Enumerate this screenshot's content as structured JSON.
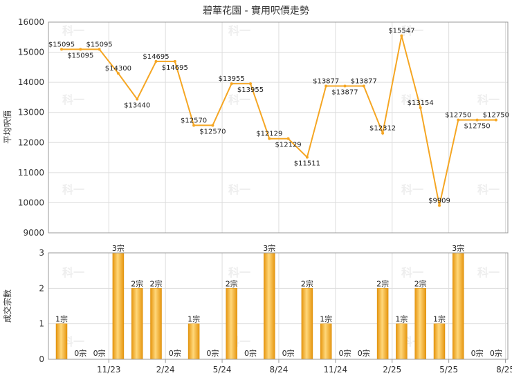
{
  "chart_data": [
    {
      "type": "line",
      "title": "碧華花園 - 實用呎價走勢",
      "ylabel": "平均呎價",
      "ylim": [
        9000,
        16000
      ],
      "yticks": [
        9000,
        10000,
        11000,
        12000,
        13000,
        14000,
        15000,
        16000
      ],
      "color": "#f5a623",
      "series": [
        {
          "values": [
            15095,
            15095,
            15095,
            14300,
            13440,
            14695,
            14695,
            12570,
            12570,
            13955,
            13955,
            12129,
            12129,
            11511,
            13877,
            13877,
            13877,
            12312,
            15547,
            13154,
            9909,
            12750,
            12750,
            12750
          ],
          "labels": [
            "$15095",
            "$15095",
            "$15095",
            "$14300",
            "$13440",
            "$14695",
            "$14695",
            "$12570",
            "$12570",
            "$13955",
            "$13955",
            "$12129",
            "$12129",
            "$11511",
            "$13877",
            "$13877",
            "$13877",
            "$12312",
            "$15547",
            "$13154",
            "$9909",
            "$12750",
            "$12750",
            "$12750"
          ]
        }
      ],
      "grid": true
    },
    {
      "type": "bar",
      "ylabel": "成交宗數",
      "ylim": [
        0,
        3
      ],
      "yticks": [
        0,
        1,
        2,
        3
      ],
      "color": "#f5a623",
      "x_tick_labels": [
        "11/23",
        "2/24",
        "5/24",
        "8/24",
        "11/24",
        "2/25",
        "5/25",
        "8/25"
      ],
      "values": [
        1,
        0,
        0,
        3,
        2,
        2,
        0,
        1,
        0,
        2,
        0,
        3,
        0,
        2,
        1,
        0,
        0,
        2,
        1,
        2,
        1,
        3,
        0,
        0
      ],
      "labels": [
        "1宗",
        "0宗",
        "0宗",
        "3宗",
        "2宗",
        "2宗",
        "0宗",
        "1宗",
        "0宗",
        "2宗",
        "0宗",
        "3宗",
        "0宗",
        "2宗",
        "1宗",
        "0宗",
        "0宗",
        "2宗",
        "1宗",
        "2宗",
        "1宗",
        "3宗",
        "0宗",
        "0宗"
      ],
      "grid": true
    }
  ],
  "watermark": "科一"
}
